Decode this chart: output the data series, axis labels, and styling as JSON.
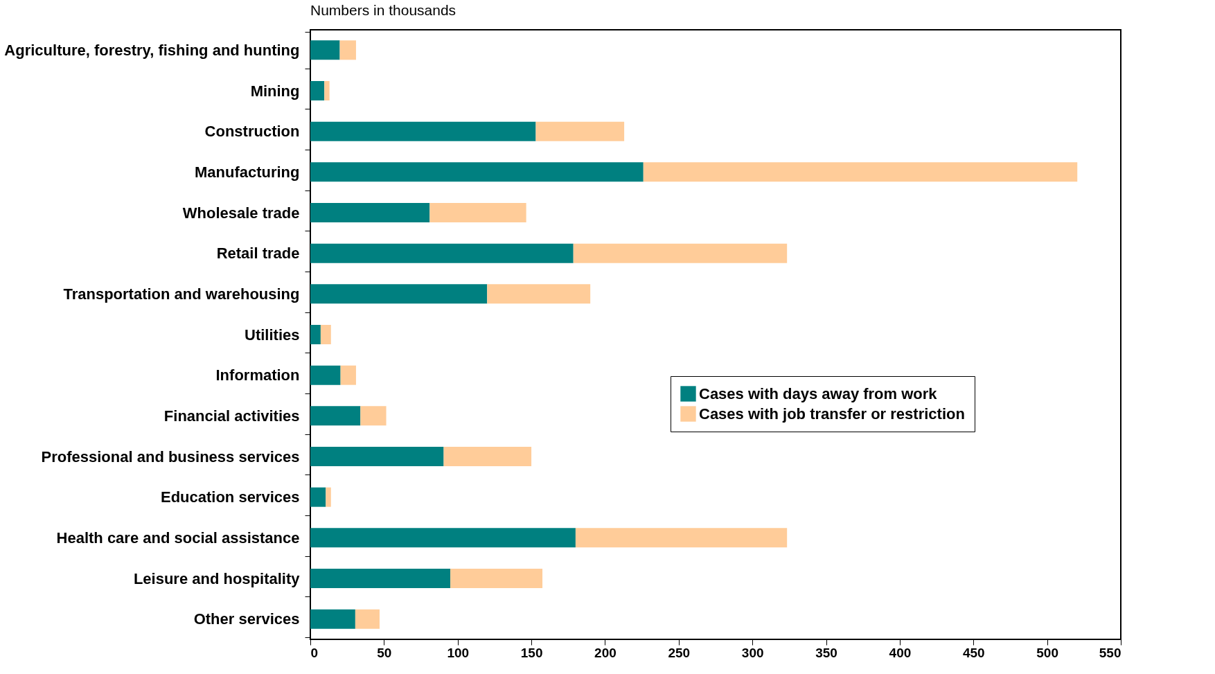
{
  "chart_data": {
    "type": "bar",
    "orientation": "horizontal",
    "stacked": true,
    "title": "Numbers in thousands",
    "categories": [
      "Agriculture, forestry, fishing and hunting",
      "Mining",
      "Construction",
      "Manufacturing",
      "Wholesale trade",
      "Retail trade",
      "Transportation and warehousing",
      "Utilities",
      "Information",
      "Financial activities",
      "Professional and business services",
      "Education services",
      "Health care and social assistance",
      "Leisure and hospitality",
      "Other services"
    ],
    "series": [
      {
        "name": "Cases with days away from work",
        "color": "#008080",
        "values": [
          20,
          9.5,
          153,
          226,
          81,
          178.5,
          120,
          7,
          20.5,
          34,
          90.5,
          10.5,
          180,
          95,
          30.5
        ]
      },
      {
        "name": "Cases with job transfer or restriction",
        "color": "#ffcc99",
        "values": [
          11,
          3.5,
          60,
          294.5,
          65.5,
          145,
          70,
          7,
          10.5,
          17.5,
          59.5,
          3.5,
          143.5,
          62.5,
          16.5
        ]
      }
    ],
    "xlim": [
      0,
      550
    ],
    "xticks": [
      0,
      50,
      100,
      150,
      200,
      250,
      300,
      350,
      400,
      450,
      500,
      550
    ],
    "grid": false,
    "legend": "right"
  }
}
